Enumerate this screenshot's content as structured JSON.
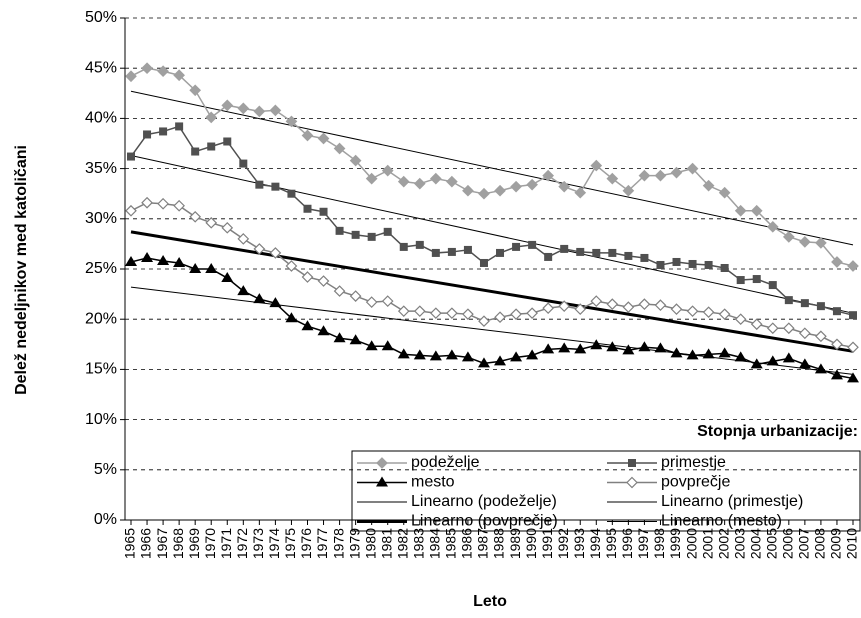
{
  "chart_data": {
    "type": "line",
    "ylabel": "Delež nedeljnikov med katoličani",
    "xlabel": "Leto",
    "legend_title": "Stopnja urbanizacije:",
    "categories": [
      "1965",
      "1966",
      "1967",
      "1968",
      "1969",
      "1970",
      "1971",
      "1972",
      "1973",
      "1974",
      "1975",
      "1976",
      "1977",
      "1978",
      "1979",
      "1980",
      "1981",
      "1982",
      "1983",
      "1984",
      "1985",
      "1986",
      "1987",
      "1988",
      "1989",
      "1990",
      "1991",
      "1992",
      "1993",
      "1994",
      "1995",
      "1996",
      "1997",
      "1998",
      "1999",
      "2000",
      "2001",
      "2002",
      "2003",
      "2004",
      "2005",
      "2006",
      "2007",
      "2008",
      "2009",
      "2010"
    ],
    "ylim": [
      0,
      50
    ],
    "yticks": [
      {
        "value": 0,
        "label": "0%"
      },
      {
        "value": 5,
        "label": "5%"
      },
      {
        "value": 10,
        "label": "10%"
      },
      {
        "value": 15,
        "label": "15%"
      },
      {
        "value": 20,
        "label": "20%"
      },
      {
        "value": 25,
        "label": "25%"
      },
      {
        "value": 30,
        "label": "30%"
      },
      {
        "value": 35,
        "label": "35%"
      },
      {
        "value": 40,
        "label": "40%"
      },
      {
        "value": 45,
        "label": "45%"
      },
      {
        "value": 50,
        "label": "50%"
      }
    ],
    "grid": true,
    "series": [
      {
        "name": "podeželje",
        "color": "#a0a0a0",
        "marker": "diamond",
        "values": [
          44.2,
          45.0,
          44.7,
          44.3,
          42.8,
          40.1,
          41.3,
          41.0,
          40.7,
          40.8,
          39.7,
          38.3,
          38.0,
          37.0,
          35.8,
          34.0,
          34.8,
          33.7,
          33.5,
          34.0,
          33.7,
          32.8,
          32.5,
          32.8,
          33.2,
          33.4,
          34.3,
          33.2,
          32.6,
          35.3,
          34.0,
          32.8,
          34.3,
          34.3,
          34.6,
          35.0,
          33.3,
          32.6,
          30.8,
          30.8,
          29.2,
          28.2,
          27.7,
          27.6,
          25.7,
          25.3
        ]
      },
      {
        "name": "primestje",
        "color": "#505050",
        "marker": "square",
        "values": [
          36.2,
          38.4,
          38.7,
          39.2,
          36.7,
          37.2,
          37.7,
          35.5,
          33.4,
          33.2,
          32.5,
          31.0,
          30.7,
          28.8,
          28.4,
          28.2,
          28.7,
          27.2,
          27.4,
          26.6,
          26.7,
          26.9,
          25.6,
          26.6,
          27.2,
          27.4,
          26.2,
          27.0,
          26.7,
          26.6,
          26.6,
          26.3,
          26.1,
          25.4,
          25.7,
          25.5,
          25.4,
          25.1,
          23.9,
          24.0,
          23.4,
          21.9,
          21.6,
          21.3,
          20.8,
          20.4
        ]
      },
      {
        "name": "mesto",
        "color": "#000000",
        "marker": "triangle",
        "values": [
          25.7,
          26.1,
          25.8,
          25.6,
          25.0,
          25.0,
          24.1,
          22.8,
          22.0,
          21.6,
          20.1,
          19.3,
          18.8,
          18.1,
          17.9,
          17.3,
          17.3,
          16.5,
          16.4,
          16.3,
          16.4,
          16.2,
          15.6,
          15.8,
          16.2,
          16.4,
          17.0,
          17.1,
          17.0,
          17.4,
          17.2,
          16.9,
          17.2,
          17.1,
          16.6,
          16.4,
          16.5,
          16.6,
          16.2,
          15.5,
          15.8,
          16.1,
          15.5,
          15.0,
          14.4,
          14.1
        ]
      },
      {
        "name": "povprečje",
        "color": "#808080",
        "marker": "open-diamond",
        "values": [
          30.8,
          31.6,
          31.5,
          31.3,
          30.2,
          29.6,
          29.1,
          28.0,
          27.0,
          26.6,
          25.3,
          24.2,
          23.8,
          22.8,
          22.3,
          21.7,
          21.8,
          20.8,
          20.8,
          20.6,
          20.6,
          20.5,
          19.8,
          20.2,
          20.5,
          20.6,
          21.1,
          21.3,
          21.0,
          21.8,
          21.5,
          21.2,
          21.5,
          21.4,
          21.0,
          20.8,
          20.7,
          20.5,
          20.0,
          19.5,
          19.1,
          19.1,
          18.6,
          18.3,
          17.5,
          17.2
        ]
      }
    ],
    "trendlines": [
      {
        "name": "Linearno (podeželje)",
        "color": "#000000",
        "width": 1,
        "x": [
          "1965",
          "2010"
        ],
        "values": [
          42.7,
          27.4
        ]
      },
      {
        "name": "Linearno (primestje)",
        "color": "#000000",
        "width": 1,
        "x": [
          "1965",
          "2010"
        ],
        "values": [
          36.3,
          20.6
        ]
      },
      {
        "name": "Linearno (povprečje)",
        "color": "#000000",
        "width": 3,
        "x": [
          "1965",
          "2010"
        ],
        "values": [
          28.7,
          16.8
        ]
      },
      {
        "name": "Linearno (mesto)",
        "color": "#000000",
        "width": 1,
        "x": [
          "1965",
          "2010"
        ],
        "values": [
          23.2,
          14.5
        ]
      }
    ]
  }
}
